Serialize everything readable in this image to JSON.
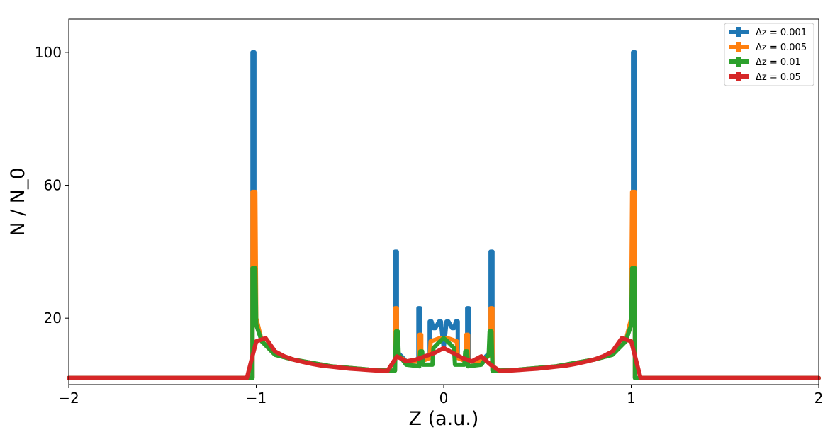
{
  "chart_data": {
    "type": "line",
    "xlabel": "Z (a.u.)",
    "ylabel": "N / N_0",
    "xlim": [
      -2,
      2
    ],
    "ylim": [
      0,
      110
    ],
    "xticks": [
      -2,
      -1,
      0,
      1,
      2
    ],
    "xtick_labels": [
      "−2",
      "−1",
      "0",
      "1",
      "2"
    ],
    "yticks": [
      20,
      60,
      100
    ],
    "ytick_labels": [
      "20",
      "60",
      "100"
    ],
    "grid": false,
    "legend_position": "top-right",
    "series": [
      {
        "name": "Δz = 0.001",
        "color": "#1f77b4",
        "points": [
          [
            -2,
            2
          ],
          [
            -1.02,
            2
          ],
          [
            -1.02,
            100
          ],
          [
            -1.01,
            100
          ],
          [
            -1.01,
            22
          ],
          [
            -0.97,
            13
          ],
          [
            -0.9,
            9
          ],
          [
            -0.8,
            7.5
          ],
          [
            -0.6,
            5.5
          ],
          [
            -0.4,
            4.5
          ],
          [
            -0.3,
            4.2
          ],
          [
            -0.26,
            4.2
          ],
          [
            -0.26,
            40
          ],
          [
            -0.25,
            40
          ],
          [
            -0.25,
            10
          ],
          [
            -0.2,
            7
          ],
          [
            -0.135,
            7
          ],
          [
            -0.135,
            23
          ],
          [
            -0.125,
            23
          ],
          [
            -0.125,
            8
          ],
          [
            -0.075,
            8
          ],
          [
            -0.075,
            19
          ],
          [
            -0.065,
            19
          ],
          [
            -0.055,
            17
          ],
          [
            -0.045,
            17
          ],
          [
            -0.025,
            19
          ],
          [
            -0.015,
            19
          ],
          [
            0,
            11
          ],
          [
            0.015,
            19
          ],
          [
            0.025,
            19
          ],
          [
            0.045,
            17
          ],
          [
            0.055,
            17
          ],
          [
            0.065,
            19
          ],
          [
            0.075,
            19
          ],
          [
            0.075,
            8
          ],
          [
            0.125,
            8
          ],
          [
            0.125,
            23
          ],
          [
            0.135,
            23
          ],
          [
            0.135,
            7
          ],
          [
            0.2,
            7
          ],
          [
            0.25,
            10
          ],
          [
            0.25,
            40
          ],
          [
            0.26,
            40
          ],
          [
            0.26,
            4.2
          ],
          [
            0.3,
            4.2
          ],
          [
            0.4,
            4.5
          ],
          [
            0.6,
            5.5
          ],
          [
            0.8,
            7.5
          ],
          [
            0.9,
            9
          ],
          [
            0.97,
            13
          ],
          [
            1.01,
            22
          ],
          [
            1.01,
            100
          ],
          [
            1.02,
            100
          ],
          [
            1.02,
            2
          ],
          [
            2,
            2
          ]
        ]
      },
      {
        "name": "Δz = 0.005",
        "color": "#ff7f0e",
        "points": [
          [
            -2,
            2
          ],
          [
            -1.02,
            2
          ],
          [
            -1.02,
            58
          ],
          [
            -1.005,
            58
          ],
          [
            -1.0,
            20
          ],
          [
            -0.97,
            13
          ],
          [
            -0.9,
            9
          ],
          [
            -0.8,
            7.5
          ],
          [
            -0.6,
            5.5
          ],
          [
            -0.4,
            4.5
          ],
          [
            -0.3,
            4.2
          ],
          [
            -0.26,
            4.2
          ],
          [
            -0.26,
            23
          ],
          [
            -0.25,
            23
          ],
          [
            -0.25,
            9
          ],
          [
            -0.2,
            7
          ],
          [
            -0.13,
            7
          ],
          [
            -0.13,
            15
          ],
          [
            -0.12,
            15
          ],
          [
            -0.12,
            7
          ],
          [
            -0.075,
            8
          ],
          [
            -0.07,
            13
          ],
          [
            -0.02,
            14
          ],
          [
            0,
            14
          ],
          [
            0.02,
            14
          ],
          [
            0.07,
            13
          ],
          [
            0.075,
            8
          ],
          [
            0.12,
            7
          ],
          [
            0.12,
            15
          ],
          [
            0.13,
            15
          ],
          [
            0.13,
            7
          ],
          [
            0.2,
            7
          ],
          [
            0.25,
            9
          ],
          [
            0.25,
            23
          ],
          [
            0.26,
            23
          ],
          [
            0.26,
            4.2
          ],
          [
            0.3,
            4.2
          ],
          [
            0.4,
            4.5
          ],
          [
            0.6,
            5.5
          ],
          [
            0.8,
            7.5
          ],
          [
            0.9,
            9
          ],
          [
            0.97,
            13
          ],
          [
            1.0,
            20
          ],
          [
            1.005,
            58
          ],
          [
            1.02,
            58
          ],
          [
            1.02,
            2
          ],
          [
            2,
            2
          ]
        ]
      },
      {
        "name": "Δz = 0.01",
        "color": "#2ca02c",
        "points": [
          [
            -2,
            2
          ],
          [
            -1.02,
            2
          ],
          [
            -1.02,
            35
          ],
          [
            -1.005,
            35
          ],
          [
            -1.0,
            18
          ],
          [
            -0.97,
            13
          ],
          [
            -0.9,
            9
          ],
          [
            -0.8,
            7.5
          ],
          [
            -0.6,
            5.5
          ],
          [
            -0.4,
            4.5
          ],
          [
            -0.3,
            4.2
          ],
          [
            -0.26,
            4.2
          ],
          [
            -0.255,
            16
          ],
          [
            -0.245,
            16
          ],
          [
            -0.24,
            9
          ],
          [
            -0.2,
            6
          ],
          [
            -0.13,
            5.5
          ],
          [
            -0.125,
            10
          ],
          [
            -0.115,
            10
          ],
          [
            -0.11,
            6
          ],
          [
            -0.06,
            6
          ],
          [
            -0.055,
            11
          ],
          [
            -0.02,
            13
          ],
          [
            0,
            14
          ],
          [
            0.02,
            13
          ],
          [
            0.055,
            11
          ],
          [
            0.06,
            6
          ],
          [
            0.11,
            6
          ],
          [
            0.115,
            10
          ],
          [
            0.125,
            10
          ],
          [
            0.13,
            5.5
          ],
          [
            0.2,
            6
          ],
          [
            0.24,
            9
          ],
          [
            0.245,
            16
          ],
          [
            0.255,
            16
          ],
          [
            0.26,
            4.2
          ],
          [
            0.3,
            4.2
          ],
          [
            0.4,
            4.5
          ],
          [
            0.6,
            5.5
          ],
          [
            0.8,
            7.5
          ],
          [
            0.9,
            9
          ],
          [
            0.97,
            13
          ],
          [
            1.0,
            18
          ],
          [
            1.005,
            35
          ],
          [
            1.02,
            35
          ],
          [
            1.02,
            2
          ],
          [
            2,
            2
          ]
        ]
      },
      {
        "name": "Δz = 0.05",
        "color": "#d62728",
        "points": [
          [
            -2,
            2
          ],
          [
            -1.05,
            2
          ],
          [
            -1.0,
            13
          ],
          [
            -0.95,
            14
          ],
          [
            -0.9,
            10
          ],
          [
            -0.85,
            8.5
          ],
          [
            -0.8,
            7.5
          ],
          [
            -0.75,
            6.8
          ],
          [
            -0.7,
            6.2
          ],
          [
            -0.65,
            5.7
          ],
          [
            -0.6,
            5.4
          ],
          [
            -0.55,
            5.1
          ],
          [
            -0.5,
            4.8
          ],
          [
            -0.45,
            4.6
          ],
          [
            -0.4,
            4.4
          ],
          [
            -0.35,
            4.2
          ],
          [
            -0.3,
            4.1
          ],
          [
            -0.25,
            8.5
          ],
          [
            -0.2,
            7
          ],
          [
            -0.15,
            7.5
          ],
          [
            -0.1,
            8.5
          ],
          [
            -0.05,
            9.5
          ],
          [
            0,
            11
          ],
          [
            0.05,
            9.5
          ],
          [
            0.1,
            8
          ],
          [
            0.15,
            7
          ],
          [
            0.2,
            8.5
          ],
          [
            0.25,
            6
          ],
          [
            0.3,
            4.1
          ],
          [
            0.35,
            4.2
          ],
          [
            0.4,
            4.4
          ],
          [
            0.45,
            4.6
          ],
          [
            0.5,
            4.8
          ],
          [
            0.55,
            5.1
          ],
          [
            0.6,
            5.4
          ],
          [
            0.65,
            5.7
          ],
          [
            0.7,
            6.2
          ],
          [
            0.75,
            6.8
          ],
          [
            0.8,
            7.5
          ],
          [
            0.85,
            8.5
          ],
          [
            0.9,
            10
          ],
          [
            0.95,
            14
          ],
          [
            1.0,
            13
          ],
          [
            1.05,
            2
          ],
          [
            2,
            2
          ]
        ]
      }
    ]
  }
}
